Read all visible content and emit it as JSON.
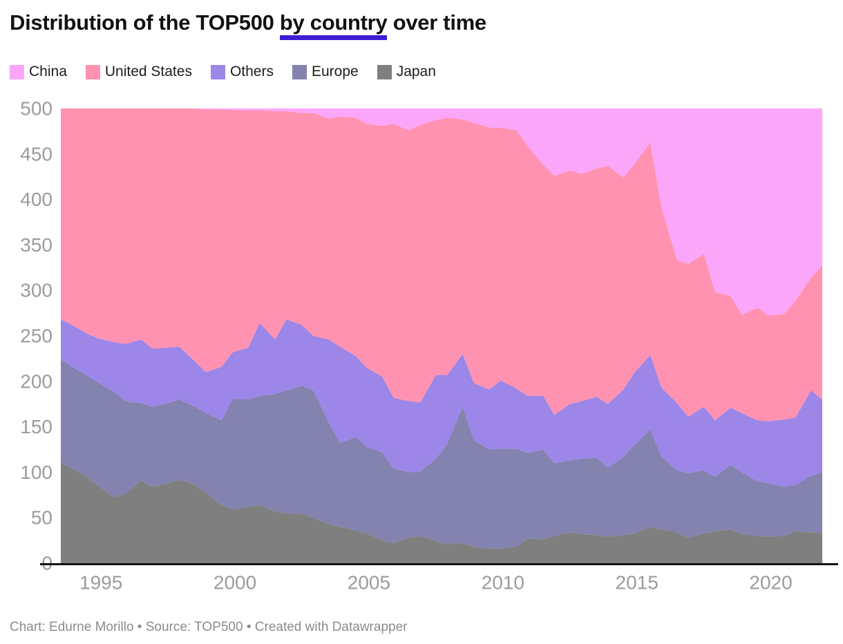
{
  "title": {
    "prefix": "Distribution of the TOP500 ",
    "highlight": "by country",
    "suffix": " over time",
    "underline_color": "#3f1dd6"
  },
  "legend": {
    "items": [
      {
        "label": "China",
        "color": "#fba6f9"
      },
      {
        "label": "United States",
        "color": "#ff92b1"
      },
      {
        "label": "Others",
        "color": "#9c86e8"
      },
      {
        "label": "Europe",
        "color": "#8482ae"
      },
      {
        "label": "Japan",
        "color": "#7f7f7f"
      }
    ]
  },
  "footer": {
    "text": "Chart: Edurne Morillo • Source: TOP500 • Created with Datawrapper"
  },
  "chart_data": {
    "type": "area",
    "stacked": true,
    "title": "Distribution of the TOP500 by country over time",
    "xlabel": "",
    "ylabel": "",
    "ylim": [
      0,
      500
    ],
    "grid": false,
    "legend_position": "top",
    "axis_line_color": "#141414",
    "tick_label_color": "#9b9b9b",
    "x_ticks": [
      1995,
      2000,
      2005,
      2010,
      2015,
      2020
    ],
    "y_ticks": [
      0,
      50,
      100,
      150,
      200,
      250,
      300,
      350,
      400,
      450,
      500
    ],
    "stack_order_bottom_to_top": [
      "Japan",
      "Europe",
      "Others",
      "United States",
      "China"
    ],
    "x": [
      1993.5,
      1993.92,
      1994.5,
      1994.92,
      1995.5,
      1995.92,
      1996.5,
      1996.92,
      1997.5,
      1997.92,
      1998.5,
      1998.92,
      1999.5,
      1999.92,
      2000.5,
      2000.92,
      2001.5,
      2001.92,
      2002.5,
      2002.92,
      2003.5,
      2003.92,
      2004.5,
      2004.92,
      2005.5,
      2005.92,
      2006.5,
      2006.92,
      2007.5,
      2007.92,
      2008.5,
      2008.92,
      2009.5,
      2009.92,
      2010.5,
      2010.92,
      2011.5,
      2011.92,
      2012.5,
      2012.92,
      2013.5,
      2013.92,
      2014.5,
      2014.92,
      2015.5,
      2015.92,
      2016.5,
      2016.92,
      2017.5,
      2017.92,
      2018.5,
      2018.92,
      2019.5,
      2019.92,
      2020.5,
      2020.92,
      2021.5,
      2021.92
    ],
    "series": [
      {
        "name": "Japan",
        "color": "#7f7f7f",
        "values": [
          111,
          104,
          94,
          85,
          72,
          77,
          91,
          84,
          88,
          92,
          86,
          77,
          64,
          59,
          62,
          64,
          57,
          55,
          54,
          50,
          43,
          40,
          36,
          33,
          25,
          22,
          28,
          30,
          24,
          21,
          22,
          18,
          16,
          16,
          18,
          27,
          26,
          30,
          34,
          32,
          31,
          29,
          31,
          33,
          40,
          37,
          34,
          28,
          33,
          35,
          37,
          32,
          30,
          29,
          30,
          35,
          34,
          33
        ]
      },
      {
        "name": "Europe",
        "color": "#8482ae",
        "values": [
          113,
          112,
          112,
          113,
          116,
          101,
          85,
          88,
          88,
          88,
          86,
          88,
          93,
          122,
          118,
          120,
          129,
          135,
          141,
          140,
          112,
          92,
          103,
          95,
          97,
          82,
          72,
          71,
          91,
          110,
          150,
          117,
          109,
          110,
          108,
          94,
          99,
          80,
          79,
          83,
          85,
          76,
          86,
          97,
          107,
          80,
          68,
          71,
          69,
          60,
          71,
          68,
          60,
          59,
          54,
          51,
          62,
          67
        ]
      },
      {
        "name": "Others",
        "color": "#9c86e8",
        "values": [
          44,
          46,
          46,
          49,
          55,
          63,
          70,
          64,
          61,
          58,
          50,
          45,
          59,
          51,
          57,
          80,
          60,
          78,
          67,
          60,
          91,
          106,
          89,
          87,
          83,
          78,
          78,
          76,
          92,
          76,
          58,
          63,
          66,
          75,
          66,
          63,
          59,
          53,
          62,
          63,
          67,
          70,
          74,
          80,
          82,
          76,
          74,
          62,
          70,
          62,
          63,
          65,
          67,
          68,
          74,
          74,
          94,
          80
        ]
      },
      {
        "name": "United States",
        "color": "#ff92b1",
        "values": [
          232,
          238,
          248,
          253,
          257,
          259,
          254,
          264,
          263,
          262,
          278,
          289,
          283,
          266,
          261,
          234,
          251,
          229,
          233,
          245,
          243,
          253,
          262,
          268,
          276,
          301,
          298,
          305,
          280,
          283,
          258,
          286,
          288,
          278,
          284,
          275,
          254,
          263,
          257,
          250,
          251,
          262,
          233,
          229,
          234,
          198,
          157,
          168,
          168,
          141,
          123,
          108,
          124,
          116,
          116,
          128,
          124,
          147
        ]
      },
      {
        "name": "China",
        "color": "#fba6f9",
        "values": [
          0,
          0,
          0,
          0,
          0,
          0,
          0,
          0,
          0,
          0,
          0,
          1,
          1,
          2,
          2,
          2,
          3,
          3,
          5,
          5,
          11,
          9,
          10,
          17,
          19,
          17,
          24,
          18,
          13,
          10,
          12,
          16,
          21,
          21,
          24,
          41,
          62,
          74,
          68,
          72,
          66,
          63,
          76,
          61,
          37,
          109,
          167,
          171,
          160,
          202,
          206,
          227,
          219,
          228,
          226,
          212,
          186,
          173
        ]
      }
    ]
  }
}
